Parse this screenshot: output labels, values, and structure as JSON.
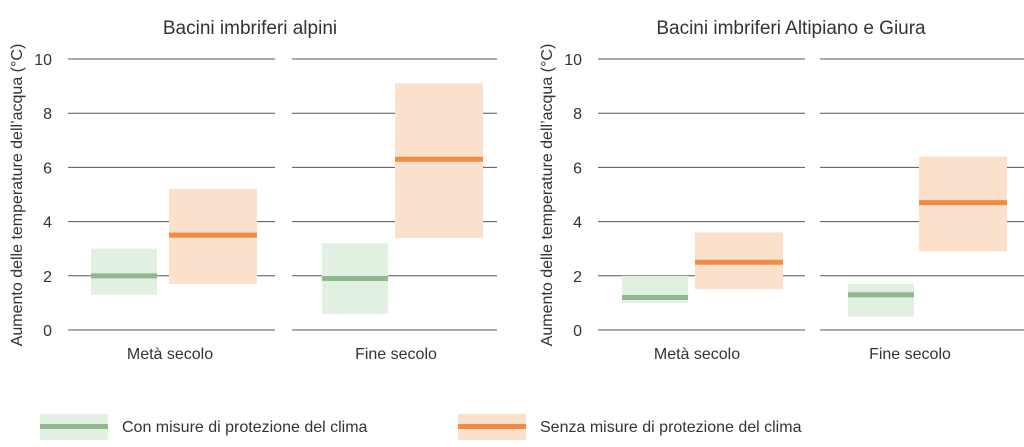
{
  "chart_data": [
    {
      "type": "range-bar",
      "title": "Bacini imbriferi alpini",
      "ylabel": "Aumento delle temperature dell’acqua (°C)",
      "ylim": [
        0,
        10
      ],
      "yticks": [
        0,
        2,
        4,
        6,
        8,
        10
      ],
      "grid": true,
      "categories": [
        "Metà secolo",
        "Fine secolo"
      ],
      "series": [
        {
          "name": "Con misure di protezione del clima",
          "median": [
            2.0,
            1.9
          ],
          "low": [
            1.3,
            0.6
          ],
          "high": [
            3.0,
            3.2
          ]
        },
        {
          "name": "Senza misure di protezione del clima",
          "median": [
            3.5,
            6.3
          ],
          "low": [
            1.7,
            3.4
          ],
          "high": [
            5.2,
            9.1
          ]
        }
      ]
    },
    {
      "type": "range-bar",
      "title": "Bacini imbriferi Altipiano e Giura",
      "ylabel": "Aumento delle temperature dell’acqua (°C)",
      "ylim": [
        0,
        10
      ],
      "yticks": [
        0,
        2,
        4,
        6,
        8,
        10
      ],
      "grid": true,
      "categories": [
        "Metà secolo",
        "Fine secolo"
      ],
      "series": [
        {
          "name": "Con misure di protezione del clima",
          "median": [
            1.2,
            1.3
          ],
          "low": [
            1.0,
            0.5
          ],
          "high": [
            2.0,
            1.7
          ]
        },
        {
          "name": "Senza misure di protezione del clima",
          "median": [
            2.5,
            4.7
          ],
          "low": [
            1.5,
            2.9
          ],
          "high": [
            3.6,
            6.4
          ]
        }
      ]
    }
  ],
  "legend": {
    "placement": "bottom",
    "items": [
      {
        "label": "Con misure di protezione del clima",
        "band_color": "#e1f0e0",
        "line_color": "#8fb88d"
      },
      {
        "label": "Senza misure di protezione del clima",
        "band_color": "#fbe0cc",
        "line_color": "#f28c45"
      }
    ]
  },
  "colors": {
    "grid": "#555555",
    "text": "#333333"
  }
}
